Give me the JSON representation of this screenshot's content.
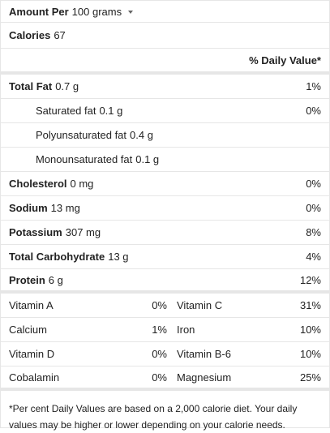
{
  "header": {
    "amount_per": "Amount Per",
    "serving": "100 grams"
  },
  "calories": {
    "label": "Calories",
    "value": "67"
  },
  "dv_heading": "% Daily Value*",
  "nutrients": [
    {
      "name": "Total Fat",
      "amount": "0.7 g",
      "dv": "1%"
    },
    {
      "name": "Saturated fat",
      "amount": "0.1 g",
      "dv": "0%"
    },
    {
      "name": "Polyunsaturated fat",
      "amount": "0.4 g",
      "dv": ""
    },
    {
      "name": "Monounsaturated fat",
      "amount": "0.1 g",
      "dv": ""
    },
    {
      "name": "Cholesterol",
      "amount": "0 mg",
      "dv": "0%"
    },
    {
      "name": "Sodium",
      "amount": "13 mg",
      "dv": "0%"
    },
    {
      "name": "Potassium",
      "amount": "307 mg",
      "dv": "8%"
    },
    {
      "name": "Total Carbohydrate",
      "amount": "13 g",
      "dv": "4%"
    },
    {
      "name": "Protein",
      "amount": "6 g",
      "dv": "12%"
    }
  ],
  "vitamins": [
    {
      "left_name": "Vitamin A",
      "left_dv": "0%",
      "right_name": "Vitamin C",
      "right_dv": "31%"
    },
    {
      "left_name": "Calcium",
      "left_dv": "1%",
      "right_name": "Iron",
      "right_dv": "10%"
    },
    {
      "left_name": "Vitamin D",
      "left_dv": "0%",
      "right_name": "Vitamin B-6",
      "right_dv": "10%"
    },
    {
      "left_name": "Cobalamin",
      "left_dv": "0%",
      "right_name": "Magnesium",
      "right_dv": "25%"
    }
  ],
  "footnote": "*Per cent Daily Values are based on a 2,000 calorie diet. Your daily values may be higher or lower depending on your calorie needs.",
  "icons": {
    "serving_dropdown": "chevron-down-icon"
  },
  "colors": {
    "text": "#222222",
    "divider": "#e6e6e6"
  }
}
